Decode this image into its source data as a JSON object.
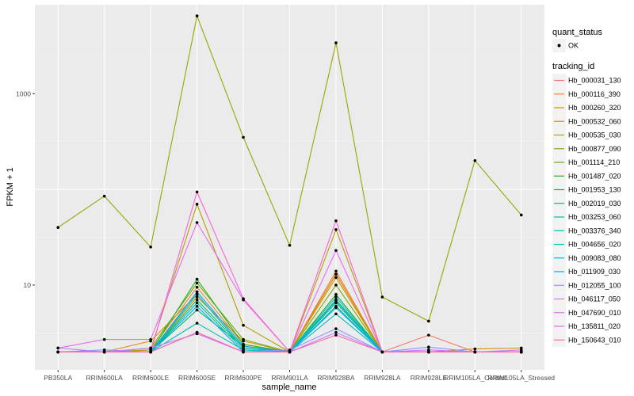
{
  "chart_data": {
    "type": "line",
    "xlabel": "sample_name",
    "ylabel": "FPKM + 1",
    "y_scale": "log10",
    "y_ticks": [
      10,
      1000
    ],
    "y_tick_labels": [
      "10",
      "1000"
    ],
    "ylim": [
      1.3,
      8500
    ],
    "grid": true,
    "legend_position": "right",
    "categories": [
      "PB350LA",
      "RRIM600LA",
      "RRIM600LE",
      "RRIM600SE",
      "RRIM600PE",
      "RRIM901LA",
      "RRIM928BA",
      "RRIM928LA",
      "RRIM928LE",
      "RRIM105LA_Control",
      "RRIM105LA_Stressed"
    ],
    "quant_status_legend": {
      "title": "quant_status",
      "entries": [
        "OK"
      ]
    },
    "tracking_legend_title": "tracking_id",
    "series": [
      {
        "name": "Hb_000031_130",
        "color": "#F8766D",
        "values": [
          2.0,
          2.0,
          2.0,
          8.5,
          2.3,
          2.0,
          13.0,
          2.0,
          3.0,
          2.0,
          2.0
        ]
      },
      {
        "name": "Hb_000116_390",
        "color": "#EE8043",
        "values": [
          2.0,
          2.0,
          2.1,
          9.5,
          2.4,
          2.0,
          14.0,
          2.0,
          2.0,
          2.0,
          2.0
        ]
      },
      {
        "name": "Hb_000260_320",
        "color": "#DF8B00",
        "values": [
          2.0,
          2.0,
          2.6,
          8.0,
          2.2,
          2.0,
          13.0,
          2.0,
          2.0,
          2.15,
          2.2
        ]
      },
      {
        "name": "Hb_000532_060",
        "color": "#CC9600",
        "values": [
          2.0,
          2.0,
          2.0,
          7.5,
          2.6,
          2.0,
          12.0,
          2.0,
          2.0,
          2.0,
          2.0
        ]
      },
      {
        "name": "Hb_000535_030",
        "color": "#B49F00",
        "values": [
          2.0,
          2.0,
          2.1,
          70.0,
          3.8,
          2.0,
          38.0,
          2.0,
          2.0,
          2.0,
          2.0
        ]
      },
      {
        "name": "Hb_000877_090",
        "color": "#98A600",
        "values": [
          40.0,
          85.0,
          25.0,
          6500.0,
          350.0,
          26.0,
          3400.0,
          7.5,
          4.2,
          200.0,
          54.0
        ]
      },
      {
        "name": "Hb_001114_210",
        "color": "#72AE00",
        "values": [
          2.0,
          2.0,
          2.2,
          10.5,
          2.7,
          2.0,
          10.0,
          2.0,
          2.0,
          2.0,
          2.0
        ]
      },
      {
        "name": "Hb_001487_020",
        "color": "#25B31F",
        "values": [
          2.0,
          2.0,
          2.0,
          11.5,
          2.4,
          2.0,
          8.0,
          2.0,
          2.0,
          2.0,
          2.0
        ]
      },
      {
        "name": "Hb_001953_130",
        "color": "#00B859",
        "values": [
          2.0,
          2.0,
          2.0,
          5.5,
          2.3,
          2.0,
          7.0,
          2.0,
          2.0,
          2.0,
          2.0
        ]
      },
      {
        "name": "Hb_002019_030",
        "color": "#00BB7E",
        "values": [
          2.0,
          2.0,
          2.0,
          7.0,
          2.2,
          2.0,
          6.5,
          2.0,
          2.0,
          2.0,
          2.0
        ]
      },
      {
        "name": "Hb_003253_060",
        "color": "#00BE9C",
        "values": [
          2.0,
          2.0,
          2.0,
          6.5,
          2.1,
          2.0,
          6.0,
          2.0,
          2.0,
          2.0,
          2.0
        ]
      },
      {
        "name": "Hb_003376_340",
        "color": "#00BFB6",
        "values": [
          2.0,
          2.0,
          2.0,
          4.0,
          2.1,
          2.0,
          5.0,
          2.0,
          2.0,
          2.0,
          2.0
        ]
      },
      {
        "name": "Hb_004656_020",
        "color": "#00BCCF",
        "values": [
          2.0,
          2.0,
          2.0,
          8.0,
          2.2,
          2.0,
          7.5,
          2.0,
          2.0,
          2.0,
          2.0
        ]
      },
      {
        "name": "Hb_009083_080",
        "color": "#00B5E5",
        "values": [
          2.0,
          2.0,
          2.0,
          8.5,
          2.3,
          2.0,
          6.8,
          2.0,
          2.0,
          2.0,
          2.0
        ]
      },
      {
        "name": "Hb_011909_030",
        "color": "#00A9FF",
        "values": [
          2.0,
          2.0,
          2.0,
          6.0,
          2.0,
          2.0,
          5.8,
          2.0,
          2.0,
          2.0,
          2.0
        ]
      },
      {
        "name": "Hb_012055_100",
        "color": "#8F91FF",
        "values": [
          2.0,
          2.1,
          2.0,
          3.2,
          2.0,
          2.1,
          3.5,
          2.0,
          2.25,
          2.0,
          2.0
        ]
      },
      {
        "name": "Hb_046117_050",
        "color": "#C77CFF",
        "values": [
          2.2,
          2.0,
          2.2,
          3.1,
          2.0,
          2.0,
          3.2,
          2.0,
          2.1,
          2.0,
          2.1
        ]
      },
      {
        "name": "Hb_047690_010",
        "color": "#E86BF3",
        "values": [
          2.2,
          2.7,
          2.7,
          45.0,
          7.0,
          2.0,
          23.0,
          2.0,
          2.0,
          2.0,
          2.0
        ]
      },
      {
        "name": "Hb_135811_020",
        "color": "#FA62D3",
        "values": [
          2.0,
          2.0,
          2.0,
          94.0,
          7.2,
          2.0,
          47.0,
          2.0,
          2.0,
          2.0,
          2.0
        ]
      },
      {
        "name": "Hb_150643_010",
        "color": "#FF66A8",
        "values": [
          2.0,
          2.0,
          2.0,
          3.2,
          2.0,
          2.0,
          3.0,
          2.0,
          2.0,
          2.0,
          2.0
        ]
      }
    ]
  }
}
